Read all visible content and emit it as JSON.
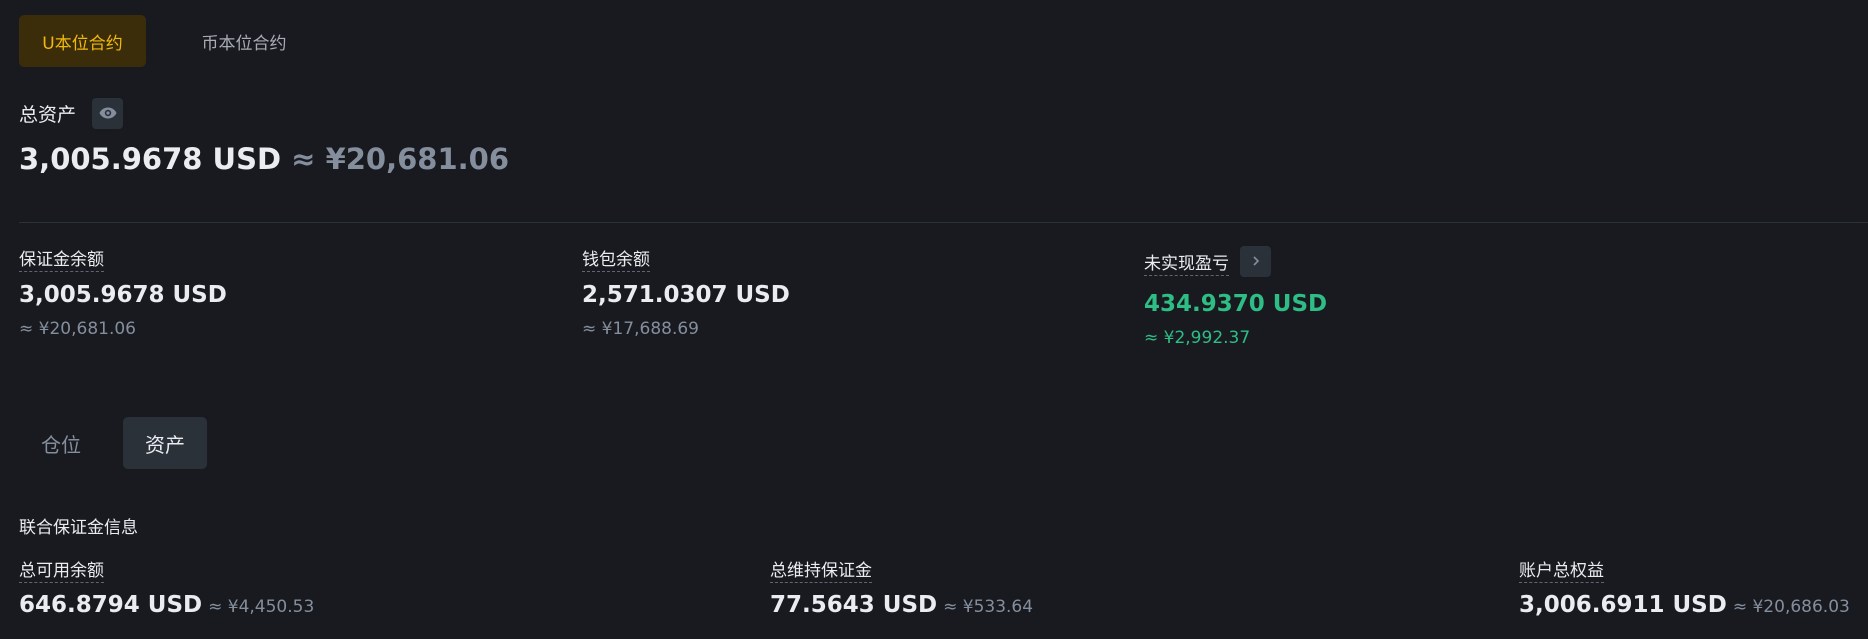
{
  "top_tabs": {
    "usdt_m": "U本位合约",
    "coin_m": "币本位合约"
  },
  "total": {
    "label": "总资产",
    "value": "3,005.9678 USD",
    "approx": "≈ ¥20,681.06"
  },
  "metrics": {
    "margin_balance": {
      "label": "保证金余额",
      "value": "3,005.9678 USD",
      "approx": "≈ ¥20,681.06"
    },
    "wallet_balance": {
      "label": "钱包余额",
      "value": "2,571.0307 USD",
      "approx": "≈ ¥17,688.69"
    },
    "unrealized_pnl": {
      "label": "未实现盈亏",
      "value": "434.9370 USD",
      "approx": "≈ ¥2,992.37"
    }
  },
  "sub_tabs": {
    "positions": "仓位",
    "assets": "资产"
  },
  "portfolio_margin": {
    "title": "联合保证金信息",
    "available": {
      "label": "总可用余额",
      "value": "646.8794 USD",
      "approx": "≈ ¥4,450.53"
    },
    "maintenance": {
      "label": "总维持保证金",
      "value": "77.5643 USD",
      "approx": "≈ ¥533.64"
    },
    "equity": {
      "label": "账户总权益",
      "value": "3,006.6911 USD",
      "approx": "≈ ¥20,686.03"
    }
  },
  "colors": {
    "background": "#181a20",
    "accent": "#f0b90b",
    "positive": "#2ebd85",
    "muted": "#848e9c"
  },
  "icons": {
    "visibility": "eye-icon",
    "details": "chevron-right-icon"
  }
}
